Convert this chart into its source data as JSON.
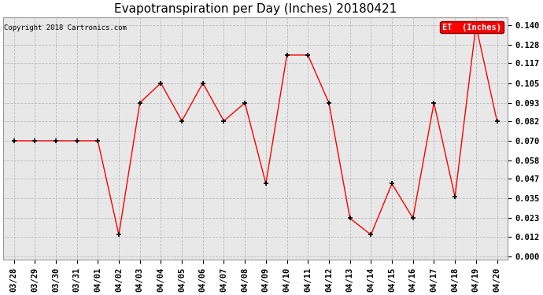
{
  "title": "Evapotranspiration per Day (Inches) 20180421",
  "copyright_text": "Copyright 2018 Cartronics.com",
  "legend_label": "ET  (Inches)",
  "legend_bg": "#ff0000",
  "legend_text_color": "#ffffff",
  "x_labels": [
    "03/28",
    "03/29",
    "03/30",
    "03/31",
    "04/01",
    "04/02",
    "04/03",
    "04/04",
    "04/05",
    "04/06",
    "04/07",
    "04/08",
    "04/09",
    "04/10",
    "04/11",
    "04/12",
    "04/13",
    "04/14",
    "04/15",
    "04/16",
    "04/17",
    "04/18",
    "04/19",
    "04/20"
  ],
  "y_values": [
    0.07,
    0.07,
    0.07,
    0.07,
    0.07,
    0.013,
    0.093,
    0.105,
    0.082,
    0.105,
    0.082,
    0.093,
    0.044,
    0.122,
    0.122,
    0.093,
    0.023,
    0.013,
    0.044,
    0.023,
    0.093,
    0.036,
    0.14,
    0.082
  ],
  "y_ticks": [
    0.0,
    0.012,
    0.023,
    0.035,
    0.047,
    0.058,
    0.07,
    0.082,
    0.093,
    0.105,
    0.117,
    0.128,
    0.14
  ],
  "y_min": -0.002,
  "y_max": 0.145,
  "line_color": "#ff0000",
  "marker_color": "#000000",
  "marker_style": "+",
  "grid_color": "#bbbbbb",
  "bg_color": "#ffffff",
  "plot_bg_color": "#e8e8e8",
  "title_fontsize": 11,
  "copyright_fontsize": 6.5,
  "tick_fontsize": 7.5,
  "legend_fontsize": 7.5
}
